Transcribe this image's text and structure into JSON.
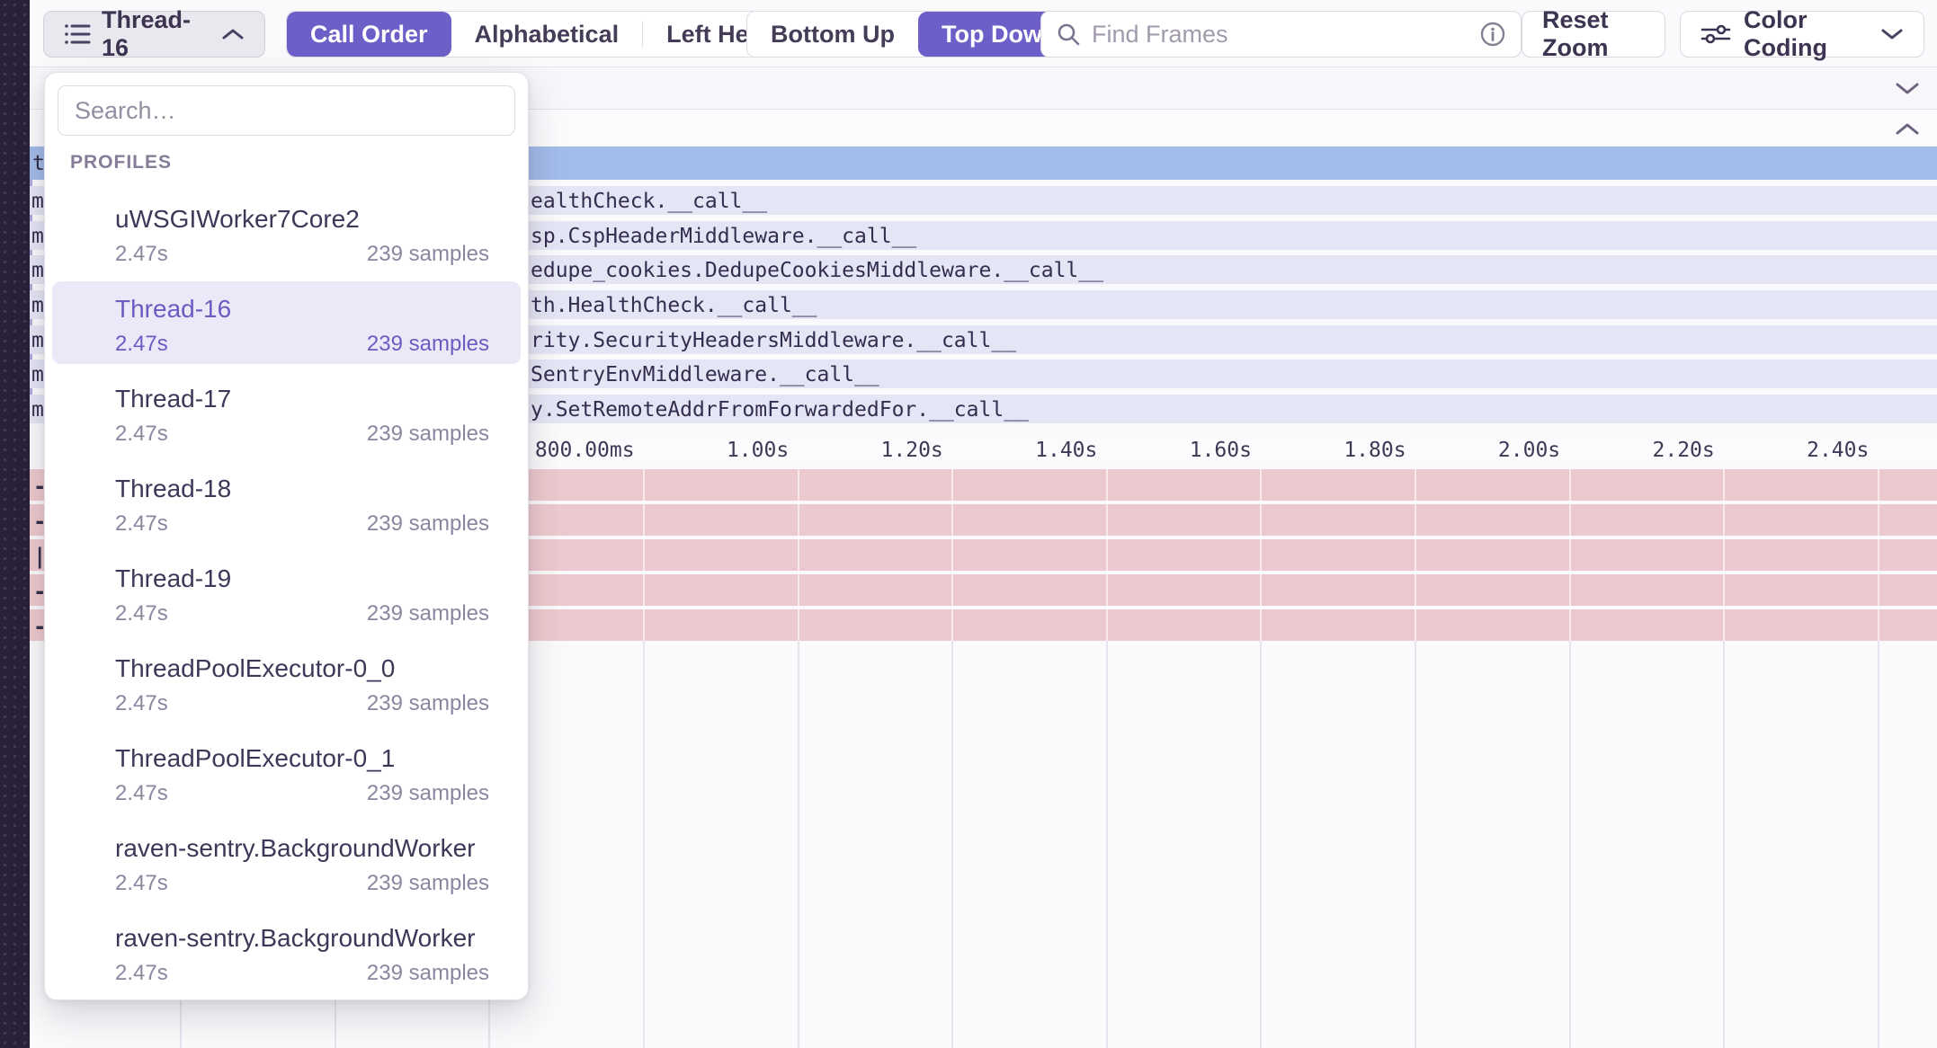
{
  "toolbar": {
    "thread_selector": {
      "label": "Thread-16"
    },
    "sort_options": {
      "options": [
        "Call Order",
        "Alphabetical",
        "Left Heavy"
      ],
      "selected": "Call Order"
    },
    "direction_options": {
      "options": [
        "Bottom Up",
        "Top Down"
      ],
      "selected": "Top Down"
    },
    "search": {
      "placeholder": "Find Frames"
    },
    "reset_zoom_label": "Reset Zoom",
    "color_coding_label": "Color Coding"
  },
  "dropdown": {
    "search_placeholder": "Search…",
    "section_label": "PROFILES",
    "items": [
      {
        "name": "uWSGIWorker7Core2",
        "duration": "2.47s",
        "samples": "239 samples",
        "selected": false
      },
      {
        "name": "Thread-16",
        "duration": "2.47s",
        "samples": "239 samples",
        "selected": true
      },
      {
        "name": "Thread-17",
        "duration": "2.47s",
        "samples": "239 samples",
        "selected": false
      },
      {
        "name": "Thread-18",
        "duration": "2.47s",
        "samples": "239 samples",
        "selected": false
      },
      {
        "name": "Thread-19",
        "duration": "2.47s",
        "samples": "239 samples",
        "selected": false
      },
      {
        "name": "ThreadPoolExecutor-0_0",
        "duration": "2.47s",
        "samples": "239 samples",
        "selected": false
      },
      {
        "name": "ThreadPoolExecutor-0_1",
        "duration": "2.47s",
        "samples": "239 samples",
        "selected": false
      },
      {
        "name": "raven-sentry.BackgroundWorker",
        "duration": "2.47s",
        "samples": "239 samples",
        "selected": false
      },
      {
        "name": "raven-sentry.BackgroundWorker",
        "duration": "2.47s",
        "samples": "239 samples",
        "selected": false
      }
    ]
  },
  "flame": {
    "root_row_fragment": "t",
    "rows": [
      {
        "left_fragment": "m",
        "label": "ealthCheck.__call__"
      },
      {
        "left_fragment": "m",
        "label": "sp.CspHeaderMiddleware.__call__"
      },
      {
        "left_fragment": "m",
        "label": "edupe_cookies.DedupeCookiesMiddleware.__call__"
      },
      {
        "left_fragment": "m",
        "label": "th.HealthCheck.__call__"
      },
      {
        "left_fragment": "m",
        "label": "rity.SecurityHeadersMiddleware.__call__"
      },
      {
        "left_fragment": "m",
        "label": "SentryEnvMiddleware.__call__"
      },
      {
        "left_fragment": "m",
        "label": "y.SetRemoteAddrFromForwardedFor.__call__"
      }
    ],
    "axis_ticks": [
      "800.00ms",
      "1.00s",
      "1.20s",
      "1.40s",
      "1.60s",
      "1.80s",
      "2.00s",
      "2.20s",
      "2.40s"
    ],
    "minimap_fragments": [
      "-",
      "-",
      "|",
      "-",
      "-"
    ]
  },
  "colors": {
    "accent": "#6c5fc7",
    "root_row": "#a2bbe9",
    "frame_row": "#e5e6f5",
    "minimap_row": "#ecc9ce",
    "sidebar": "#2a2139"
  }
}
